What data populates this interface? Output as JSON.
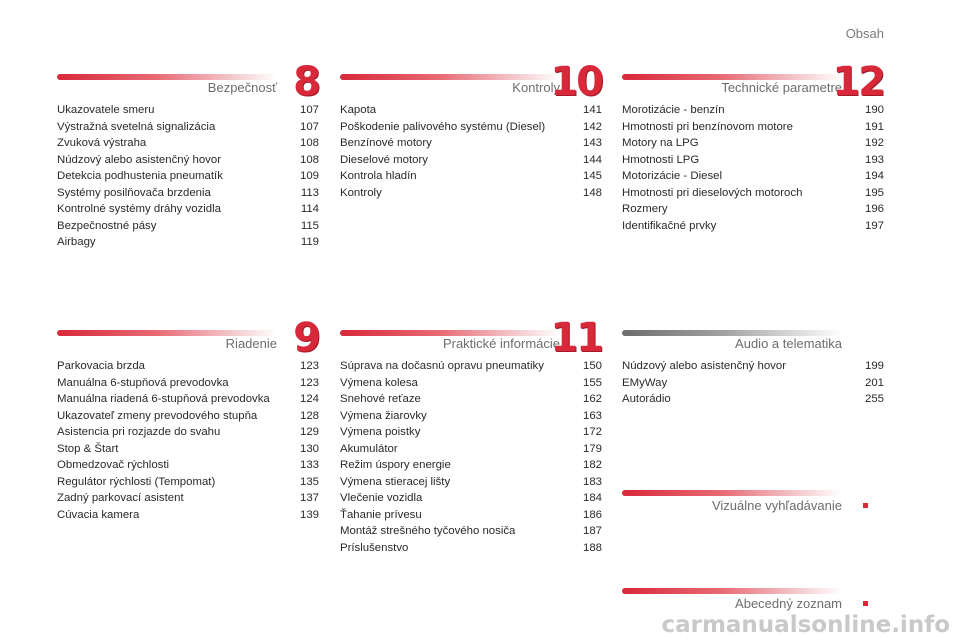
{
  "page_title": "Obsah",
  "sections": [
    {
      "title": "Bezpečnosť",
      "number": "8",
      "entries": [
        {
          "label": "Ukazovatele smeru",
          "page": "107"
        },
        {
          "label": "Výstražná svetelná signalizácia",
          "page": "107"
        },
        {
          "label": "Zvuková výstraha",
          "page": "108"
        },
        {
          "label": "Núdzový alebo asistenčný hovor",
          "page": "108"
        },
        {
          "label": "Detekcia podhustenia pneumatík",
          "page": "109"
        },
        {
          "label": "Systémy posilňovača brzdenia",
          "page": "113"
        },
        {
          "label": "Kontrolné systémy dráhy vozidla",
          "page": "114"
        },
        {
          "label": "Bezpečnostné pásy",
          "page": "115"
        },
        {
          "label": "Airbagy",
          "page": "119"
        }
      ]
    },
    {
      "title": "Kontroly",
      "number": "10",
      "entries": [
        {
          "label": "Kapota",
          "page": "141"
        },
        {
          "label": "Poškodenie palivového systému (Diesel)",
          "page": "142"
        },
        {
          "label": "Benzínové motory",
          "page": "143"
        },
        {
          "label": "Dieselové motory",
          "page": "144"
        },
        {
          "label": "Kontrola hladín",
          "page": "145"
        },
        {
          "label": "Kontroly",
          "page": "148"
        }
      ]
    },
    {
      "title": "Technické parametre",
      "number": "12",
      "entries": [
        {
          "label": "Morotizácie - benzín",
          "page": "190"
        },
        {
          "label": "Hmotnosti pri benzínovom motore",
          "page": "191"
        },
        {
          "label": "Motory na LPG",
          "page": "192"
        },
        {
          "label": "Hmotnosti LPG",
          "page": "193"
        },
        {
          "label": "Motorizácie - Diesel",
          "page": "194"
        },
        {
          "label": "Hmotnosti pri dieselových motoroch",
          "page": "195"
        },
        {
          "label": "Rozmery",
          "page": "196"
        },
        {
          "label": "Identifikačné prvky",
          "page": "197"
        }
      ]
    },
    {
      "title": "Riadenie",
      "number": "9",
      "entries": [
        {
          "label": "Parkovacia brzda",
          "page": "123"
        },
        {
          "label": "Manuálna 6-stupňová prevodovka",
          "page": "123"
        },
        {
          "label": "Manuálna riadená 6-stupňová prevodovka",
          "page": "124"
        },
        {
          "label": "Ukazovateľ zmeny prevodového stupňa",
          "page": "128"
        },
        {
          "label": "Asistencia pri rozjazde do svahu",
          "page": "129"
        },
        {
          "label": "Stop & Štart",
          "page": "130"
        },
        {
          "label": "Obmedzovač rýchlosti",
          "page": "133"
        },
        {
          "label": "Regulátor rýchlosti (Tempomat)",
          "page": "135"
        },
        {
          "label": "Zadný parkovací asistent",
          "page": "137"
        },
        {
          "label": "Cúvacia kamera",
          "page": "139"
        }
      ]
    },
    {
      "title": "Praktické informácie",
      "number": "11",
      "entries": [
        {
          "label": "Súprava na dočasnú opravu pneumatiky",
          "page": "150"
        },
        {
          "label": "Výmena kolesa",
          "page": "155"
        },
        {
          "label": "Snehové reťaze",
          "page": "162"
        },
        {
          "label": "Výmena žiarovky",
          "page": "163"
        },
        {
          "label": "Výmena poistky",
          "page": "172"
        },
        {
          "label": "Akumulátor",
          "page": "179"
        },
        {
          "label": "Režim úspory energie",
          "page": "182"
        },
        {
          "label": "Výmena stieracej lišty",
          "page": "183"
        },
        {
          "label": "Vlečenie vozidla",
          "page": "184"
        },
        {
          "label": "Ťahanie prívesu",
          "page": "186"
        },
        {
          "label": "Montáž strešného tyčového nosiča",
          "page": "187"
        },
        {
          "label": "Príslušenstvo",
          "page": "188"
        }
      ]
    },
    {
      "title": "Audio a telematika",
      "number": "",
      "entries": [
        {
          "label": "Núdzový alebo asistenčný hovor",
          "page": "199"
        },
        {
          "label": "EMyWay",
          "page": "201"
        },
        {
          "label": "Autorádio",
          "page": "255"
        }
      ]
    }
  ],
  "links": {
    "visual_search": "Vizuálne vyhľadávanie",
    "alphabetical_index": "Abecedný zoznam"
  },
  "watermark": "carmanualsonline.info",
  "colors": {
    "accent": "#d8283a",
    "gray_bar": "#6d6d6d"
  }
}
